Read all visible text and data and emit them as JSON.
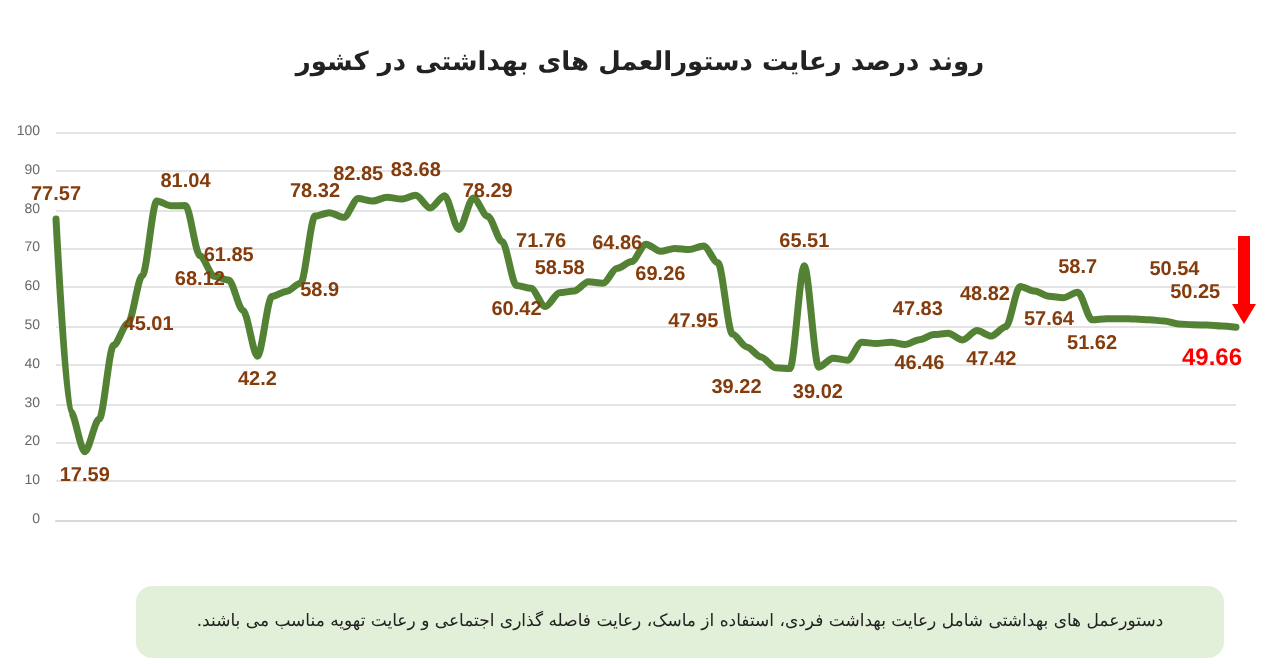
{
  "chart_data": {
    "type": "line",
    "title": "روند درصد رعایت دستورالعمل های بهداشتی در کشور",
    "annotations": [
      "دستورعمل های بهداشتی شامل رعایت بهداشت فردی، استفاده از ماسک، رعایت فاصله گذاری اجتماعی و رعایت تهویه مناسب می باشند."
    ],
    "categories": [
      null,
      null,
      null,
      null,
      null,
      null,
      null,
      null,
      null,
      null,
      null,
      null,
      null,
      null,
      null,
      null,
      null,
      null,
      null,
      null,
      null,
      null,
      null,
      null,
      null,
      null,
      null,
      null,
      null,
      null,
      null,
      null,
      null,
      null,
      null,
      null,
      null,
      null,
      null,
      null,
      null,
      null,
      null,
      null,
      null,
      null,
      null,
      null,
      null,
      null,
      null,
      null,
      null,
      null,
      null,
      null,
      null,
      null,
      null,
      null,
      null,
      null,
      null,
      null,
      null,
      null,
      null,
      null,
      null,
      null,
      null,
      null,
      null,
      null,
      null,
      null,
      null,
      null,
      null,
      null,
      null,
      null,
      null
    ],
    "series": [
      {
        "color": "#548235",
        "values": [
          77.57,
          28,
          17.59,
          26,
          45.01,
          50.7,
          63,
          82.2,
          81,
          81.04,
          68.12,
          62.8,
          61.85,
          54,
          42.2,
          57.6,
          58.9,
          61,
          78.32,
          79.2,
          78,
          82.85,
          82.2,
          83.2,
          82.7,
          83.68,
          80.4,
          83.6,
          74.9,
          83,
          78.29,
          71.76,
          60.42,
          59.7,
          55,
          58.58,
          59,
          61.4,
          61,
          64.86,
          66.6,
          71.1,
          69.26,
          70,
          69.7,
          70.6,
          66.3,
          47.95,
          44.6,
          42,
          39.22,
          39.02,
          65.51,
          39.4,
          41.7,
          41.2,
          45.8,
          45.5,
          45.8,
          45.2,
          46.46,
          47.83,
          48.1,
          46.4,
          48.82,
          47.42,
          49.8,
          60.2,
          59,
          57.64,
          57.3,
          58.7,
          51.62,
          51.9,
          51.9,
          51.8,
          51.6,
          51.3,
          50.54,
          50.3,
          50.25,
          50,
          49.66
        ],
        "value_labels": [
          "77.57",
          null,
          "17.59",
          null,
          "45.01",
          null,
          null,
          null,
          null,
          "81.04",
          "68.12",
          null,
          "61.85",
          null,
          "42.2",
          null,
          "58.9",
          null,
          "78.32",
          null,
          null,
          "82.85",
          null,
          null,
          null,
          "83.68",
          null,
          null,
          null,
          null,
          "78.29",
          "71.76",
          "60.42",
          null,
          null,
          "58.58",
          null,
          null,
          null,
          "64.86",
          null,
          null,
          "69.26",
          null,
          null,
          null,
          null,
          "47.95",
          null,
          null,
          "39.22",
          "39.02",
          "65.51",
          null,
          null,
          null,
          null,
          null,
          null,
          null,
          "46.46",
          "47.83",
          null,
          null,
          "48.82",
          "47.42",
          null,
          null,
          null,
          "57.64",
          null,
          "58.7",
          "51.62",
          null,
          null,
          null,
          null,
          null,
          "50.54",
          null,
          "50.25",
          null,
          "49.66"
        ]
      }
    ],
    "ylim": [
      0,
      100
    ],
    "yticks": [
      0,
      10,
      20,
      30,
      40,
      50,
      60,
      70,
      80,
      90,
      100
    ],
    "grid": "y",
    "marker": "none",
    "line_style": "solid"
  }
}
